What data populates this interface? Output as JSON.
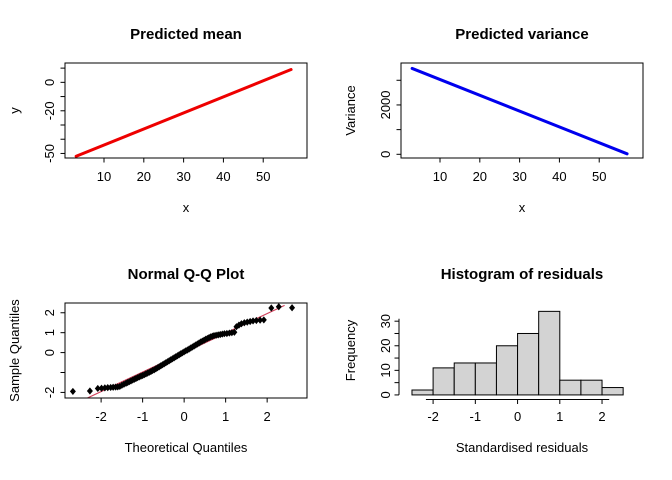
{
  "figure_name": "R 2x2 diagnostic plot grid",
  "chart_data": [
    {
      "name": "predicted-mean",
      "type": "line",
      "title": "Predicted mean",
      "xlabel": "x",
      "ylabel": "y",
      "series_color": "#EE0000",
      "line_width": 3,
      "boxed": true,
      "xlim": [
        0.2,
        61.0
      ],
      "ylim": [
        -53.2,
        13.6
      ],
      "xticks": [
        {
          "v": 10,
          "label": "10"
        },
        {
          "v": 20,
          "label": "20"
        },
        {
          "v": 30,
          "label": "30"
        },
        {
          "v": 40,
          "label": "40"
        },
        {
          "v": 50,
          "label": "50"
        }
      ],
      "yticks": [
        {
          "v": 10
        },
        {
          "v": 0,
          "label": "0"
        },
        {
          "v": -10
        },
        {
          "v": -20,
          "label": "-20"
        },
        {
          "v": -30
        },
        {
          "v": -40
        },
        {
          "v": -50,
          "label": "-50"
        }
      ],
      "line": {
        "x1": 3,
        "y1": -52,
        "x2": 57,
        "y2": 9
      }
    },
    {
      "name": "predicted-variance",
      "type": "line",
      "title": "Predicted variance",
      "xlabel": "x",
      "ylabel": "Variance",
      "series_color": "#0000EE",
      "line_width": 3,
      "boxed": true,
      "xlim": [
        0.2,
        61.0
      ],
      "ylim": [
        -150,
        3700
      ],
      "xticks": [
        {
          "v": 10,
          "label": "10"
        },
        {
          "v": 20,
          "label": "20"
        },
        {
          "v": 30,
          "label": "30"
        },
        {
          "v": 40,
          "label": "40"
        },
        {
          "v": 50,
          "label": "50"
        }
      ],
      "yticks": [
        {
          "v": 0,
          "label": "0"
        },
        {
          "v": 1000
        },
        {
          "v": 2000,
          "label": "2000"
        },
        {
          "v": 3000
        }
      ],
      "line": {
        "x1": 3,
        "y1": 3480,
        "x2": 57,
        "y2": 20
      }
    },
    {
      "name": "normal-qq-plot",
      "type": "qq",
      "title": "Normal Q-Q Plot",
      "xlabel": "Theoretical Quantiles",
      "ylabel": "Sample Quantiles",
      "point_color": "#000000",
      "ref_line_color": "#D1415B",
      "boxed": true,
      "xlim": [
        -2.87,
        2.96
      ],
      "ylim": [
        -2.28,
        2.49
      ],
      "xticks": [
        {
          "v": -2,
          "label": "-2"
        },
        {
          "v": -1,
          "label": "-1"
        },
        {
          "v": 0,
          "label": "0"
        },
        {
          "v": 1,
          "label": "1"
        },
        {
          "v": 2,
          "label": "2"
        }
      ],
      "yticks": [
        {
          "v": 2,
          "label": "2"
        },
        {
          "v": 1,
          "label": "1"
        },
        {
          "v": 0,
          "label": "0"
        },
        {
          "v": -1
        },
        {
          "v": -2,
          "label": "-2"
        }
      ],
      "ref_line": {
        "x1": -2.33,
        "y1": -2.28,
        "x2": 2.42,
        "y2": 2.37
      },
      "points": [
        [
          -2.68,
          -1.95
        ],
        [
          -2.27,
          -1.93
        ],
        [
          -2.08,
          -1.8
        ],
        [
          -1.99,
          -1.79
        ],
        [
          -1.91,
          -1.77
        ],
        [
          -1.84,
          -1.76
        ],
        [
          -1.77,
          -1.75
        ],
        [
          -1.71,
          -1.74
        ],
        [
          -1.65,
          -1.73
        ],
        [
          -1.6,
          -1.72
        ],
        [
          -1.55,
          -1.7
        ],
        [
          -1.5,
          -1.64
        ],
        [
          -1.45,
          -1.59
        ],
        [
          -1.4,
          -1.54
        ],
        [
          -1.36,
          -1.5
        ],
        [
          -1.32,
          -1.46
        ],
        [
          -1.28,
          -1.42
        ],
        [
          -1.24,
          -1.38
        ],
        [
          -1.2,
          -1.34
        ],
        [
          -1.16,
          -1.3
        ],
        [
          -1.12,
          -1.26
        ],
        [
          -1.08,
          -1.22
        ],
        [
          -1.04,
          -1.18
        ],
        [
          -1.0,
          -1.15
        ],
        [
          -0.96,
          -1.11
        ],
        [
          -0.92,
          -1.07
        ],
        [
          -0.88,
          -1.03
        ],
        [
          -0.84,
          -0.99
        ],
        [
          -0.8,
          -0.95
        ],
        [
          -0.76,
          -0.9
        ],
        [
          -0.72,
          -0.86
        ],
        [
          -0.68,
          -0.81
        ],
        [
          -0.64,
          -0.76
        ],
        [
          -0.6,
          -0.71
        ],
        [
          -0.56,
          -0.66
        ],
        [
          -0.52,
          -0.61
        ],
        [
          -0.48,
          -0.56
        ],
        [
          -0.44,
          -0.51
        ],
        [
          -0.4,
          -0.46
        ],
        [
          -0.36,
          -0.41
        ],
        [
          -0.32,
          -0.36
        ],
        [
          -0.28,
          -0.31
        ],
        [
          -0.24,
          -0.26
        ],
        [
          -0.2,
          -0.21
        ],
        [
          -0.16,
          -0.16
        ],
        [
          -0.12,
          -0.11
        ],
        [
          -0.08,
          -0.06
        ],
        [
          -0.04,
          -0.01
        ],
        [
          0.0,
          0.04
        ],
        [
          0.04,
          0.09
        ],
        [
          0.08,
          0.13
        ],
        [
          0.12,
          0.18
        ],
        [
          0.16,
          0.23
        ],
        [
          0.2,
          0.28
        ],
        [
          0.24,
          0.33
        ],
        [
          0.28,
          0.38
        ],
        [
          0.32,
          0.43
        ],
        [
          0.36,
          0.48
        ],
        [
          0.4,
          0.53
        ],
        [
          0.44,
          0.58
        ],
        [
          0.48,
          0.62
        ],
        [
          0.52,
          0.67
        ],
        [
          0.56,
          0.71
        ],
        [
          0.6,
          0.75
        ],
        [
          0.64,
          0.79
        ],
        [
          0.68,
          0.82
        ],
        [
          0.72,
          0.85
        ],
        [
          0.77,
          0.87
        ],
        [
          0.82,
          0.89
        ],
        [
          0.87,
          0.91
        ],
        [
          0.92,
          0.93
        ],
        [
          0.97,
          0.95
        ],
        [
          1.03,
          0.96
        ],
        [
          1.09,
          0.98
        ],
        [
          1.15,
          1.0
        ],
        [
          1.21,
          1.02
        ],
        [
          1.26,
          1.3
        ],
        [
          1.32,
          1.38
        ],
        [
          1.38,
          1.45
        ],
        [
          1.45,
          1.5
        ],
        [
          1.52,
          1.53
        ],
        [
          1.59,
          1.56
        ],
        [
          1.66,
          1.59
        ],
        [
          1.74,
          1.61
        ],
        [
          1.83,
          1.63
        ],
        [
          1.92,
          1.64
        ],
        [
          2.1,
          2.24
        ],
        [
          2.28,
          2.3
        ],
        [
          2.6,
          2.25
        ]
      ]
    },
    {
      "name": "histogram-of-residuals",
      "type": "hist",
      "title": "Histogram of residuals",
      "xlabel": "Standardised residuals",
      "ylabel": "Frequency",
      "bar_fill": "#D3D3D3",
      "bar_stroke": "#000000",
      "boxed": false,
      "xlim": [
        -2.76,
        2.97
      ],
      "ylim": [
        -1.25,
        37.4
      ],
      "xticks": [
        {
          "v": -2,
          "label": "-2"
        },
        {
          "v": -1,
          "label": "-1"
        },
        {
          "v": 0,
          "label": "0"
        },
        {
          "v": 1,
          "label": "1"
        },
        {
          "v": 2,
          "label": "2"
        }
      ],
      "yticks": [
        {
          "v": 0,
          "label": "0"
        },
        {
          "v": 5
        },
        {
          "v": 10,
          "label": "10"
        },
        {
          "v": 15
        },
        {
          "v": 20,
          "label": "20"
        },
        {
          "v": 25
        },
        {
          "v": 30,
          "label": "30"
        }
      ],
      "bins": {
        "start": -2.5,
        "width": 0.5,
        "counts": [
          2,
          11,
          13,
          13,
          20,
          25,
          34,
          6,
          6,
          3
        ]
      },
      "xaxis_span": [
        -2.17,
        2.17
      ],
      "yaxis_span": [
        0,
        31
      ]
    }
  ]
}
